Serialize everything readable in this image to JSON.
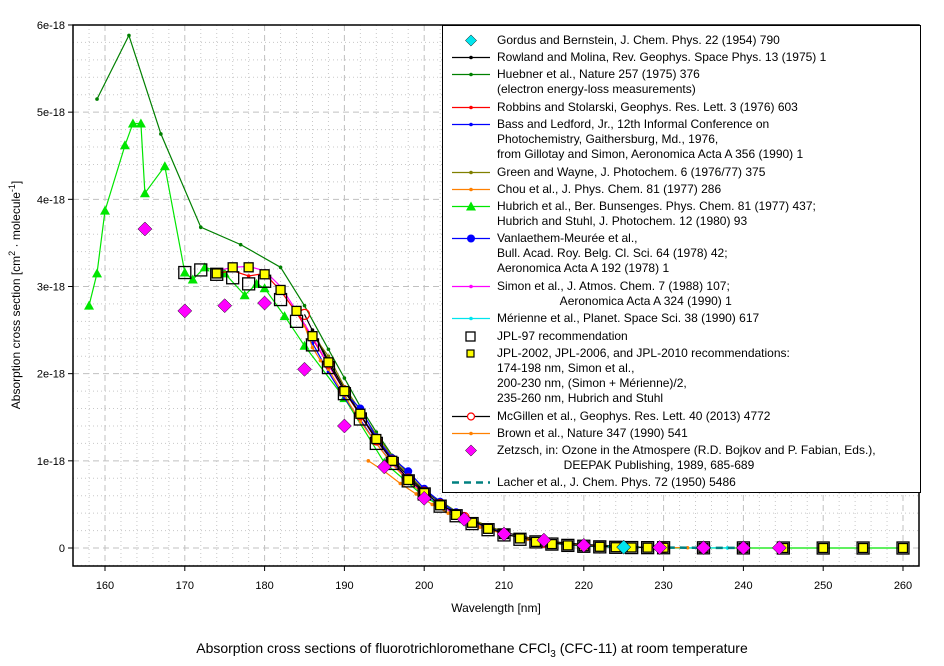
{
  "chart_data": {
    "type": "scatter",
    "title": "Absorption cross sections of fluorotrichloromethane CFCl3 (CFC-11) at room temperature",
    "caption_parts": {
      "pre": "Absorption cross sections of fluorotrichloromethane CFCl",
      "sub": "3",
      "post": " (CFC-11) at room temperature"
    },
    "xlabel": "Wavelength [nm]",
    "ylabel": "Absorption cross section [cm2 · molecule-1]",
    "ylabel_parts": {
      "pre": "Absorption cross section [cm",
      "sup1": "2",
      "mid": " · molecule",
      "sup2": "-1",
      "post": "]"
    },
    "xlim": [
      156,
      263
    ],
    "ylim": [
      -2.2e-19,
      6e-18
    ],
    "xticks": [
      160,
      170,
      180,
      190,
      200,
      210,
      220,
      230,
      240,
      250,
      260
    ],
    "yticks": [
      0,
      1e-18,
      2e-18,
      3e-18,
      4e-18,
      5e-18,
      6e-18
    ],
    "ytick_labels": [
      "0",
      "1e-18",
      "2e-18",
      "3e-18",
      "4e-18",
      "5e-18",
      "6e-18"
    ],
    "grid": true,
    "legend_position": "top-right",
    "series": [
      {
        "name": "Gordus and Bernstein, J. Chem. Phys. 22 (1954) 790",
        "color": "#00e5ee",
        "marker": "diamond",
        "line": false,
        "x": [
          225
        ],
        "y": [
          1e-20
        ]
      },
      {
        "name": "Rowland and Molina, Rev. Geophys. Space Phys. 13 (1975) 1",
        "color": "#000000",
        "marker": "dot",
        "line": true,
        "x": [
          186,
          188,
          190,
          192,
          194,
          196,
          198,
          200,
          205,
          210,
          215,
          220,
          225
        ],
        "y": [
          2.5e-18,
          2.15e-18,
          1.83e-18,
          1.53e-18,
          1.26e-18,
          1.02e-18,
          8.2e-19,
          6.5e-19,
          3.5e-19,
          1.8e-19,
          8e-20,
          4e-20,
          2e-20
        ]
      },
      {
        "name": "Huebner et al., Nature 257 (1975) 376\n(electron energy-loss measurements)",
        "color": "#008000",
        "marker": "dot",
        "line": true,
        "x": [
          159,
          163,
          167,
          172,
          177,
          182,
          185,
          188,
          190,
          192,
          194,
          196,
          198,
          200,
          205,
          210
        ],
        "y": [
          5.15e-18,
          5.88e-18,
          4.75e-18,
          3.68e-18,
          3.48e-18,
          3.22e-18,
          2.78e-18,
          2.28e-18,
          1.95e-18,
          1.62e-18,
          1.33e-18,
          1.06e-18,
          8.5e-19,
          6.6e-19,
          3.6e-19,
          1.8e-19
        ]
      },
      {
        "name": "Robbins and Stolarski, Geophys. Res. Lett. 3 (1976) 603",
        "color": "#ff0000",
        "marker": "dot",
        "line": true,
        "x": [
          174,
          176,
          178,
          180,
          182,
          184,
          186,
          188,
          190,
          192,
          194,
          196,
          198,
          200
        ],
        "y": [
          3.15e-18,
          3.18e-18,
          3.12e-18,
          3.15e-18,
          2.95e-18,
          2.7e-18,
          2.4e-18,
          2.1e-18,
          1.8e-18,
          1.52e-18,
          1.24e-18,
          1e-18,
          7.9e-19,
          6.3e-19
        ]
      },
      {
        "name": "Bass and Ledford, Jr., 12th Informal Conference on\nPhotochemistry, Gaithersburg, Md., 1976,\nfrom Gillotay and Simon, Aeronomica Acta A 356 (1990) 1",
        "color": "#0000ff",
        "marker": "dot",
        "line": true,
        "x": [
          186,
          188,
          190,
          192,
          194,
          196,
          198,
          200,
          202,
          205,
          210
        ],
        "y": [
          2.35e-18,
          2.02e-18,
          1.72e-18,
          1.47e-18,
          1.2e-18,
          9.7e-19,
          7.8e-19,
          6.2e-19,
          4.9e-19,
          3.4e-19,
          1.7e-19
        ]
      },
      {
        "name": "Green and Wayne, J. Photochem. 6 (1976/77) 375",
        "color": "#808000",
        "marker": "dot",
        "line": true,
        "x": [
          186,
          188,
          190,
          192,
          194,
          196,
          198,
          200,
          202,
          204,
          206,
          208,
          210
        ],
        "y": [
          2.45e-18,
          2.2e-18,
          1.85e-18,
          1.57e-18,
          1.3e-18,
          1.05e-18,
          8.4e-19,
          6.7e-19,
          5.3e-19,
          4.2e-19,
          3.3e-19,
          2.5e-19,
          1.9e-19
        ]
      },
      {
        "name": "Chou et al., J. Phys. Chem. 81 (1977) 286",
        "color": "#ff8000",
        "marker": "dot",
        "line": true,
        "x": [
          185,
          186,
          187,
          188,
          190,
          192,
          194,
          196,
          198,
          200
        ],
        "y": [
          2.55e-18,
          2.3e-18,
          2.15e-18,
          2.05e-18,
          1.75e-18,
          1.45e-18,
          1.2e-18,
          9.6e-19,
          7.7e-19,
          6.1e-19
        ]
      },
      {
        "name": "Hubrich et al., Ber. Bunsenges. Phys. Chem. 81 (1977) 437;\nHubrich and Stuhl, J. Photochem. 12 (1980) 93",
        "color": "#00e600",
        "marker": "triangle",
        "line": true,
        "x": [
          158,
          159,
          160,
          162.5,
          163.5,
          164.5,
          165,
          167.5,
          170,
          171,
          172.5,
          175,
          177.5,
          179,
          180,
          182.5,
          185,
          190,
          195,
          200,
          205,
          210,
          215,
          220,
          225,
          230,
          235,
          240,
          245,
          250,
          255,
          260
        ],
        "y": [
          2.78e-18,
          3.15e-18,
          3.87e-18,
          4.62e-18,
          4.87e-18,
          4.87e-18,
          4.07e-18,
          4.38e-18,
          3.16e-18,
          3.08e-18,
          3.22e-18,
          3.15e-18,
          2.9e-18,
          3.03e-18,
          2.98e-18,
          2.66e-18,
          2.32e-18,
          1.72e-18,
          9.8e-19,
          5.9e-19,
          3.3e-19,
          1.6e-19,
          6e-20,
          2e-20,
          1e-20,
          0,
          0,
          0,
          0,
          0,
          0,
          0
        ]
      },
      {
        "name": "Vanlaethem-Meurée et al.,\nBull. Acad. Roy. Belg. Cl. Sci. 64 (1978) 42;\nAeronomica Acta A 192 (1978) 1",
        "color": "#0000ff",
        "marker": "circle",
        "line": true,
        "x": [
          190,
          192,
          194,
          196,
          198,
          200,
          202,
          204,
          206,
          208,
          210
        ],
        "y": [
          1.78e-18,
          1.6e-18,
          1.27e-18,
          1.03e-18,
          8.8e-19,
          6.8e-19,
          5.3e-19,
          4.1e-19,
          3.1e-19,
          2.3e-19,
          1.7e-19
        ]
      },
      {
        "name": "Simon et al., J. Atmos. Chem. 7 (1988) 107;\n                   Aeronomica Acta A 324 (1990) 1",
        "color": "#ff00ff",
        "marker": "dot",
        "line": true,
        "x": [
          174,
          176,
          178,
          180,
          182,
          184,
          186,
          188,
          190,
          192,
          194,
          196,
          198,
          200,
          202,
          204,
          206,
          208,
          210,
          215,
          220,
          225,
          230
        ],
        "y": [
          3.18e-18,
          3.22e-18,
          3.23e-18,
          3.18e-18,
          3e-18,
          2.72e-18,
          2.42e-18,
          2.1e-18,
          1.8e-18,
          1.53e-18,
          1.24e-18,
          1e-18,
          7.8e-19,
          6.3e-19,
          4.9e-19,
          3.8e-19,
          2.9e-19,
          2.2e-19,
          1.6e-19,
          6e-20,
          2.5e-20,
          1e-20,
          5e-21
        ]
      },
      {
        "name": "Mérienne et al., Planet. Space Sci. 38 (1990) 617",
        "color": "#00e5ee",
        "marker": "dot",
        "line": true,
        "x": [
          200,
          205,
          210,
          215,
          220,
          225,
          230,
          235,
          238
        ],
        "y": [
          6.2e-19,
          3.4e-19,
          1.6e-19,
          6e-20,
          2.5e-20,
          1e-20,
          5e-21,
          2e-21,
          1e-21
        ]
      },
      {
        "name": "JPL-97 recommendation",
        "color": "#000000",
        "marker": "square-open",
        "line": false,
        "x": [
          170,
          172,
          174,
          176,
          178,
          180,
          182,
          184,
          186,
          188,
          190,
          192,
          194,
          196,
          198,
          200,
          202,
          204,
          206,
          208,
          210,
          212,
          214,
          216,
          218,
          220,
          222,
          224,
          226,
          228,
          230,
          235,
          240,
          245,
          250,
          255,
          260
        ],
        "y": [
          3.16e-18,
          3.19e-18,
          3.14e-18,
          3.1e-18,
          3.03e-18,
          3.06e-18,
          2.85e-18,
          2.6e-18,
          2.33e-18,
          2.07e-18,
          1.77e-18,
          1.48e-18,
          1.2e-18,
          9.7e-19,
          7.7e-19,
          6.2e-19,
          4.8e-19,
          3.7e-19,
          2.8e-19,
          2.1e-19,
          1.5e-19,
          1e-19,
          7e-20,
          4.5e-20,
          3e-20,
          2e-20,
          1.3e-20,
          8e-21,
          5e-21,
          4e-21,
          3e-21,
          2e-21,
          1e-21,
          0,
          0,
          0,
          0
        ]
      },
      {
        "name": "JPL-2002, JPL-2006, and JPL-2010 recommendations:\n174-198 nm, Simon et al.,\n200-230 nm, (Simon + Mérienne)/2,\n235-260 nm, Hubrich and Stuhl",
        "color": "#ffff00",
        "marker": "square-filled",
        "line": false,
        "x": [
          174,
          176,
          178,
          180,
          182,
          184,
          186,
          188,
          190,
          192,
          194,
          196,
          198,
          200,
          202,
          204,
          206,
          208,
          210,
          212,
          214,
          216,
          218,
          220,
          222,
          224,
          226,
          228,
          230,
          235,
          240,
          245,
          250,
          255,
          260
        ],
        "y": [
          3.15e-18,
          3.22e-18,
          3.22e-18,
          3.14e-18,
          2.96e-18,
          2.72e-18,
          2.43e-18,
          2.13e-18,
          1.8e-18,
          1.54e-18,
          1.25e-18,
          1e-18,
          7.8e-19,
          6.3e-19,
          4.9e-19,
          3.8e-19,
          2.9e-19,
          2.2e-19,
          1.6e-19,
          1.1e-19,
          7e-20,
          4.5e-20,
          3e-20,
          2e-20,
          1.4e-20,
          9e-21,
          6e-21,
          4e-21,
          3e-21,
          1e-21,
          0,
          0,
          0,
          0,
          0
        ]
      },
      {
        "name": "McGillen et al., Geophys. Res. Lett. 40 (2013) 4772",
        "color": "#ff0000",
        "marker": "circle-open",
        "line": true,
        "x": [
          185,
          188,
          190,
          192,
          194,
          196,
          198,
          200,
          202,
          205,
          210,
          215,
          220,
          225,
          230
        ],
        "y": [
          2.68e-18,
          2.12e-18,
          1.8e-18,
          1.53e-18,
          1.24e-18,
          1e-18,
          7.9e-19,
          6.4e-19,
          5e-19,
          3.5e-19,
          1.6e-19,
          6.5e-20,
          2.5e-20,
          1e-20,
          5e-21
        ]
      },
      {
        "name": "Brown et al., Nature 347 (1990) 541",
        "color": "#ff8000",
        "marker": "dot",
        "line": true,
        "x": [
          193,
          195,
          197,
          199,
          201,
          203,
          205,
          207,
          210,
          213,
          216,
          220,
          225,
          230,
          233
        ],
        "y": [
          1e-18,
          8.8e-19,
          7.4e-19,
          6.2e-19,
          5e-19,
          4e-19,
          3.1e-19,
          2.4e-19,
          1.6e-19,
          1e-19,
          6e-20,
          3e-20,
          1e-20,
          5e-21,
          3e-21
        ]
      },
      {
        "name": "Zetzsch, in: Ozone in the Atmospere (R.D. Bojkov and P. Fabian, Eds.),\n                    DEEPAK Publishing, 1989, 685-689",
        "color": "#ff00ff",
        "marker": "diamond",
        "line": false,
        "x": [
          165,
          170,
          175,
          180,
          185,
          190,
          195,
          200,
          205,
          210,
          215,
          220,
          225,
          229.5,
          235,
          240,
          244.5
        ],
        "y": [
          3.66e-18,
          2.72e-18,
          2.78e-18,
          2.81e-18,
          2.05e-18,
          1.4e-18,
          9.3e-19,
          5.7e-19,
          3.3e-19,
          1.6e-19,
          9e-20,
          3e-20,
          1e-20,
          5e-21,
          3e-21,
          2e-21,
          2e-21
        ]
      },
      {
        "name": "Lacher et al., J. Chem. Phys. 72 (1950) 5486",
        "color": "#008080",
        "marker": "none",
        "line": "dashed",
        "x": [
          220,
          222,
          224,
          226,
          228,
          230,
          233,
          236,
          240
        ],
        "y": [
          3e-20,
          2e-20,
          1.5e-20,
          1e-20,
          8e-21,
          5e-21,
          3e-21,
          2e-21,
          1e-21
        ]
      }
    ]
  },
  "legend": {
    "items": [
      {
        "text": "Gordus and Bernstein, J. Chem. Phys. 22 (1954) 790",
        "symbol": "diamond",
        "color": "#00e5ee",
        "lines": 1
      },
      {
        "text": "Rowland and Molina, Rev. Geophys. Space Phys. 13 (1975) 1",
        "symbol": "line-dot",
        "color": "#000000",
        "lines": 1
      },
      {
        "text": "Huebner et al., Nature 257 (1975) 376\n(electron energy-loss measurements)",
        "symbol": "line-dot",
        "color": "#008000",
        "lines": 2
      },
      {
        "text": "Robbins and Stolarski, Geophys. Res. Lett. 3 (1976) 603",
        "symbol": "line-dot",
        "color": "#ff0000",
        "lines": 1
      },
      {
        "text": "Bass and Ledford, Jr., 12th Informal Conference on\nPhotochemistry, Gaithersburg, Md., 1976,\nfrom Gillotay and Simon, Aeronomica Acta A 356 (1990) 1",
        "symbol": "line-dot",
        "color": "#0000ff",
        "lines": 3
      },
      {
        "text": "Green and Wayne, J. Photochem. 6 (1976/77) 375",
        "symbol": "line-dot",
        "color": "#808000",
        "lines": 1
      },
      {
        "text": "Chou et al., J. Phys. Chem. 81 (1977) 286",
        "symbol": "line-dot",
        "color": "#ff8000",
        "lines": 1
      },
      {
        "text": "Hubrich et al., Ber. Bunsenges. Phys. Chem. 81 (1977) 437;\nHubrich and Stuhl, J. Photochem. 12 (1980) 93",
        "symbol": "line-triangle",
        "color": "#00e600",
        "lines": 2
      },
      {
        "text": "Vanlaethem-Meurée et al.,\nBull. Acad. Roy. Belg. Cl. Sci. 64 (1978) 42;\nAeronomica Acta A 192 (1978) 1",
        "symbol": "line-circle",
        "color": "#0000ff",
        "lines": 3
      },
      {
        "text": "Simon et al., J. Atmos. Chem. 7 (1988) 107;\n                   Aeronomica Acta A 324 (1990) 1",
        "symbol": "line-dot",
        "color": "#ff00ff",
        "lines": 2
      },
      {
        "text": "Mérienne et al., Planet. Space Sci. 38 (1990) 617",
        "symbol": "line-dot",
        "color": "#00e5ee",
        "lines": 1
      },
      {
        "text": "JPL-97 recommendation",
        "symbol": "square-open",
        "color": "#000000",
        "lines": 1
      },
      {
        "text": "JPL-2002, JPL-2006, and JPL-2010 recommendations:\n174-198 nm, Simon et al.,\n200-230 nm, (Simon + Mérienne)/2,\n235-260 nm, Hubrich and Stuhl",
        "symbol": "square-filled",
        "color": "#ffff00",
        "lines": 4
      },
      {
        "text": "McGillen et al., Geophys. Res. Lett. 40 (2013) 4772",
        "symbol": "line-circle-open",
        "color": "#ff0000",
        "lines": 1
      },
      {
        "text": "Brown et al., Nature 347 (1990) 541",
        "symbol": "line-dot",
        "color": "#ff8000",
        "lines": 1
      },
      {
        "text": "Zetzsch, in: Ozone in the Atmospere (R.D. Bojkov and P. Fabian, Eds.),\n                    DEEPAK Publishing, 1989, 685-689",
        "symbol": "diamond",
        "color": "#ff00ff",
        "lines": 2
      },
      {
        "text": "Lacher et al., J. Chem. Phys. 72 (1950) 5486",
        "symbol": "dashed",
        "color": "#008080",
        "lines": 1
      }
    ]
  }
}
